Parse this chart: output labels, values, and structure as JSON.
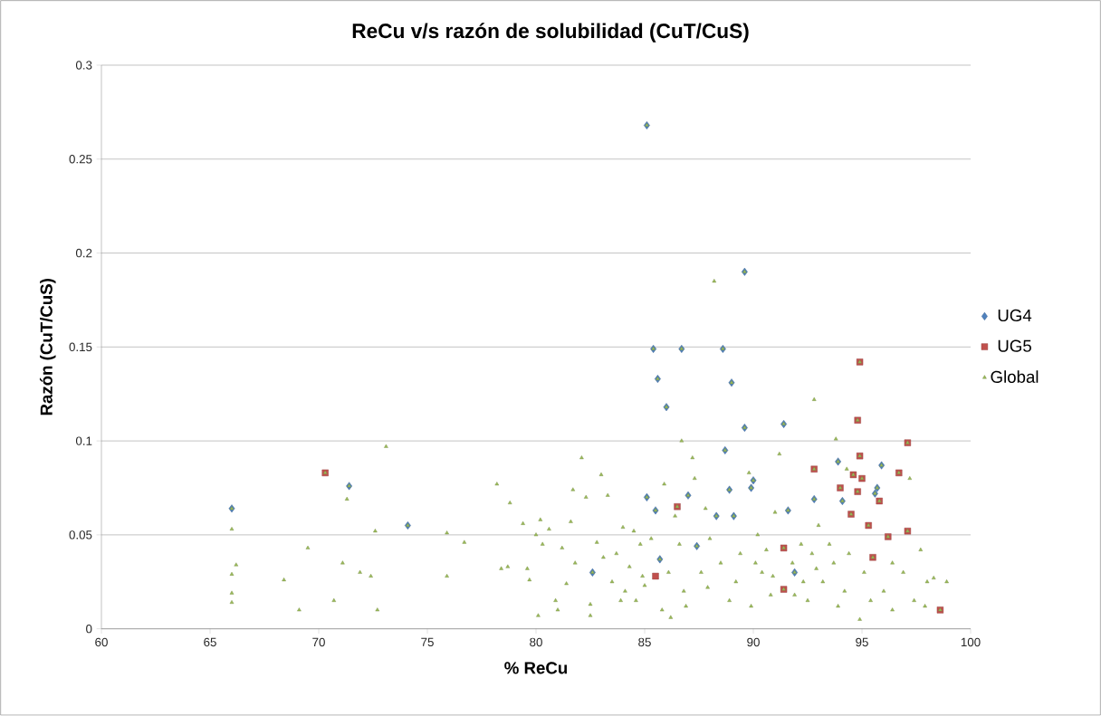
{
  "chart_data": {
    "type": "scatter",
    "title": "ReCu v/s razón de solubilidad (CuT/CuS)",
    "xlabel": "% ReCu",
    "ylabel": "Razón (CuT/CuS)",
    "xlim": [
      60,
      100
    ],
    "xticks": [
      60,
      65,
      70,
      75,
      80,
      85,
      90,
      95,
      100
    ],
    "ylim": [
      0,
      0.3
    ],
    "yticks": [
      0,
      0.05,
      0.1,
      0.15,
      0.2,
      0.25,
      0.3
    ],
    "grid": "y",
    "legend": "right",
    "series": [
      {
        "name": "UG4",
        "color": "#4f81bd",
        "marker": "diamond",
        "x": [
          66.0,
          71.4,
          74.1,
          82.6,
          85.1,
          85.1,
          85.4,
          85.5,
          85.6,
          85.7,
          86.0,
          86.7,
          87.0,
          87.4,
          88.3,
          88.6,
          88.7,
          88.9,
          89.0,
          89.1,
          89.6,
          89.6,
          89.9,
          90.0,
          91.4,
          91.6,
          91.9,
          92.8,
          93.9,
          94.1,
          95.6,
          95.7,
          95.9
        ],
        "values": [
          0.064,
          0.076,
          0.055,
          0.03,
          0.268,
          0.07,
          0.149,
          0.063,
          0.133,
          0.037,
          0.118,
          0.149,
          0.071,
          0.044,
          0.06,
          0.149,
          0.095,
          0.074,
          0.131,
          0.06,
          0.19,
          0.107,
          0.075,
          0.079,
          0.109,
          0.063,
          0.03,
          0.069,
          0.089,
          0.068,
          0.072,
          0.075,
          0.087
        ]
      },
      {
        "name": "UG5",
        "color": "#c0504d",
        "marker": "square",
        "x": [
          70.3,
          85.5,
          86.5,
          91.4,
          91.4,
          92.8,
          94.0,
          94.5,
          94.6,
          94.8,
          94.8,
          94.9,
          94.9,
          95.0,
          95.3,
          95.5,
          95.8,
          96.2,
          96.7,
          97.1,
          97.1,
          98.6
        ],
        "values": [
          0.083,
          0.028,
          0.065,
          0.043,
          0.021,
          0.085,
          0.075,
          0.061,
          0.082,
          0.073,
          0.111,
          0.142,
          0.092,
          0.08,
          0.055,
          0.038,
          0.068,
          0.049,
          0.083,
          0.099,
          0.052,
          0.01
        ]
      },
      {
        "name": "Global",
        "color": "#9bbb59",
        "marker": "triangle",
        "x": [
          66.0,
          66.0,
          66.0,
          66.0,
          66.0,
          66.2,
          68.4,
          69.1,
          69.5,
          70.3,
          70.7,
          71.1,
          71.3,
          71.4,
          71.9,
          72.4,
          72.6,
          72.7,
          73.1,
          74.1,
          75.9,
          75.9,
          76.7,
          78.2,
          78.4,
          78.7,
          78.8,
          79.4,
          79.6,
          79.7,
          80.0,
          80.1,
          80.2,
          80.3,
          80.6,
          80.9,
          81.0,
          81.2,
          81.4,
          81.6,
          81.7,
          81.8,
          82.1,
          82.3,
          82.5,
          82.5,
          82.6,
          82.8,
          83.0,
          83.1,
          83.3,
          83.5,
          83.7,
          83.9,
          84.0,
          84.1,
          84.3,
          84.5,
          84.6,
          84.8,
          84.9,
          85.0,
          85.1,
          85.1,
          85.3,
          85.4,
          85.5,
          85.6,
          85.7,
          85.8,
          85.9,
          86.0,
          86.1,
          86.2,
          86.4,
          86.5,
          86.6,
          86.7,
          86.7,
          86.8,
          86.9,
          87.0,
          87.2,
          87.3,
          87.4,
          87.6,
          87.8,
          87.9,
          88.0,
          88.2,
          88.3,
          88.5,
          88.6,
          88.7,
          88.9,
          88.9,
          89.0,
          89.1,
          89.2,
          89.4,
          89.6,
          89.6,
          89.8,
          89.9,
          89.9,
          90.0,
          90.1,
          90.2,
          90.4,
          90.6,
          90.8,
          90.9,
          91.0,
          91.2,
          91.4,
          91.4,
          91.4,
          91.6,
          91.8,
          91.9,
          91.9,
          92.2,
          92.3,
          92.5,
          92.7,
          92.8,
          92.8,
          92.8,
          92.9,
          93.0,
          93.2,
          93.5,
          93.7,
          93.8,
          93.9,
          93.9,
          94.0,
          94.1,
          94.2,
          94.3,
          94.4,
          94.5,
          94.6,
          94.8,
          94.8,
          94.9,
          94.9,
          94.9,
          95.0,
          95.1,
          95.3,
          95.4,
          95.5,
          95.6,
          95.7,
          95.8,
          95.9,
          96.0,
          96.2,
          96.4,
          96.4,
          96.7,
          96.9,
          97.1,
          97.1,
          97.2,
          97.4,
          97.7,
          97.9,
          98.0,
          98.3,
          98.6,
          98.9
        ],
        "values": [
          0.053,
          0.029,
          0.019,
          0.014,
          0.064,
          0.034,
          0.026,
          0.01,
          0.043,
          0.083,
          0.015,
          0.035,
          0.069,
          0.076,
          0.03,
          0.028,
          0.052,
          0.01,
          0.097,
          0.055,
          0.051,
          0.028,
          0.046,
          0.077,
          0.032,
          0.033,
          0.067,
          0.056,
          0.032,
          0.026,
          0.05,
          0.007,
          0.058,
          0.045,
          0.053,
          0.015,
          0.01,
          0.043,
          0.024,
          0.057,
          0.074,
          0.035,
          0.091,
          0.07,
          0.013,
          0.007,
          0.03,
          0.046,
          0.082,
          0.038,
          0.071,
          0.025,
          0.04,
          0.015,
          0.054,
          0.02,
          0.033,
          0.052,
          0.015,
          0.045,
          0.028,
          0.023,
          0.07,
          0.268,
          0.048,
          0.149,
          0.063,
          0.133,
          0.037,
          0.01,
          0.077,
          0.118,
          0.03,
          0.006,
          0.06,
          0.065,
          0.045,
          0.1,
          0.149,
          0.02,
          0.012,
          0.071,
          0.091,
          0.08,
          0.044,
          0.03,
          0.064,
          0.022,
          0.048,
          0.185,
          0.06,
          0.035,
          0.149,
          0.095,
          0.074,
          0.015,
          0.131,
          0.06,
          0.025,
          0.04,
          0.19,
          0.107,
          0.083,
          0.075,
          0.012,
          0.079,
          0.035,
          0.05,
          0.03,
          0.042,
          0.018,
          0.028,
          0.062,
          0.093,
          0.109,
          0.043,
          0.021,
          0.063,
          0.035,
          0.03,
          0.018,
          0.045,
          0.025,
          0.015,
          0.04,
          0.122,
          0.085,
          0.069,
          0.032,
          0.055,
          0.025,
          0.045,
          0.035,
          0.101,
          0.089,
          0.012,
          0.075,
          0.068,
          0.02,
          0.085,
          0.04,
          0.061,
          0.082,
          0.073,
          0.111,
          0.142,
          0.092,
          0.005,
          0.08,
          0.03,
          0.055,
          0.015,
          0.038,
          0.072,
          0.075,
          0.068,
          0.087,
          0.02,
          0.049,
          0.01,
          0.035,
          0.083,
          0.03,
          0.099,
          0.052,
          0.08,
          0.015,
          0.042,
          0.012,
          0.025,
          0.027,
          0.01,
          0.025
        ]
      }
    ]
  }
}
